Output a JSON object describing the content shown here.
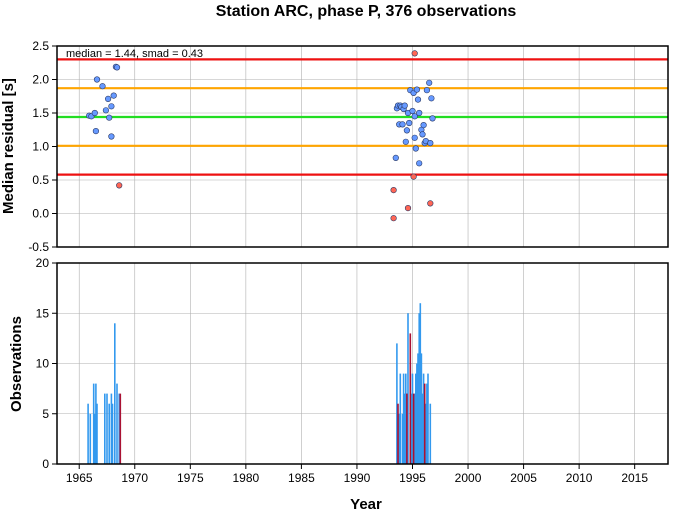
{
  "chart_data": [
    {
      "type": "scatter",
      "title": "Station ARC, phase P, 376 observations",
      "ylabel": "Median residual [s]",
      "xlim": [
        1963,
        2018
      ],
      "ylim": [
        -0.5,
        2.5
      ],
      "yticks": [
        "-0.5",
        "0.0",
        "0.5",
        "1.0",
        "1.5",
        "2.0",
        "2.5"
      ],
      "grid": true,
      "annotation": "median = 1.44, smad = 0.43",
      "reference_lines": [
        {
          "y": 2.3,
          "color": "#ee1111"
        },
        {
          "y": 1.87,
          "color": "#ffa500"
        },
        {
          "y": 1.44,
          "color": "#22dd22"
        },
        {
          "y": 1.01,
          "color": "#ffa500"
        },
        {
          "y": 0.58,
          "color": "#ee1111"
        }
      ],
      "series": [
        {
          "color": "#6699ff",
          "points": [
            [
              1965.9,
              1.46
            ],
            [
              1966.1,
              1.45
            ],
            [
              1966.4,
              1.5
            ],
            [
              1966.5,
              1.23
            ],
            [
              1966.6,
              2.0
            ],
            [
              1967.1,
              1.9
            ],
            [
              1967.4,
              1.54
            ],
            [
              1967.6,
              1.71
            ],
            [
              1967.7,
              1.43
            ],
            [
              1967.9,
              1.15
            ],
            [
              1967.9,
              1.6
            ],
            [
              1968.1,
              1.76
            ],
            [
              1968.3,
              2.19
            ],
            [
              1968.4,
              2.18
            ],
            [
              1993.5,
              0.83
            ],
            [
              1993.6,
              1.57
            ],
            [
              1993.7,
              1.61
            ],
            [
              1993.8,
              1.33
            ],
            [
              1993.9,
              1.61
            ],
            [
              1994.0,
              1.59
            ],
            [
              1994.1,
              1.33
            ],
            [
              1994.2,
              1.56
            ],
            [
              1994.3,
              1.61
            ],
            [
              1994.4,
              1.07
            ],
            [
              1994.5,
              1.24
            ],
            [
              1994.6,
              1.5
            ],
            [
              1994.7,
              1.35
            ],
            [
              1994.8,
              1.84
            ],
            [
              1995.0,
              1.53
            ],
            [
              1995.1,
              1.8
            ],
            [
              1995.2,
              1.45
            ],
            [
              1995.2,
              1.13
            ],
            [
              1995.3,
              0.97
            ],
            [
              1995.4,
              1.85
            ],
            [
              1995.5,
              1.7
            ],
            [
              1995.6,
              0.75
            ],
            [
              1995.6,
              1.5
            ],
            [
              1995.8,
              1.25
            ],
            [
              1995.9,
              1.18
            ],
            [
              1996.0,
              1.32
            ],
            [
              1996.1,
              1.05
            ],
            [
              1996.2,
              1.08
            ],
            [
              1996.3,
              1.84
            ],
            [
              1996.5,
              1.95
            ],
            [
              1996.6,
              1.05
            ],
            [
              1996.7,
              1.72
            ],
            [
              1996.8,
              1.42
            ]
          ]
        },
        {
          "color": "#ff6655",
          "points": [
            [
              1968.6,
              0.42
            ],
            [
              1993.3,
              0.35
            ],
            [
              1993.3,
              -0.07
            ],
            [
              1994.6,
              0.08
            ],
            [
              1995.1,
              0.55
            ],
            [
              1995.2,
              2.39
            ],
            [
              1996.6,
              0.15
            ]
          ]
        }
      ]
    },
    {
      "type": "bar",
      "xlabel": "Year",
      "ylabel": "Observations",
      "xlim": [
        1963,
        2018
      ],
      "ylim": [
        0,
        20
      ],
      "xticks": [
        "1965",
        "1970",
        "1975",
        "1980",
        "1985",
        "1990",
        "1995",
        "2000",
        "2005",
        "2010",
        "2015"
      ],
      "yticks": [
        "0",
        "5",
        "10",
        "15",
        "20"
      ],
      "grid": true,
      "series": [
        {
          "color": "#3399ee",
          "bars": [
            [
              1965.8,
              6
            ],
            [
              1966.0,
              5
            ],
            [
              1966.3,
              8
            ],
            [
              1966.4,
              5
            ],
            [
              1966.5,
              8
            ],
            [
              1966.6,
              6
            ],
            [
              1967.3,
              7
            ],
            [
              1967.5,
              7
            ],
            [
              1967.7,
              6
            ],
            [
              1967.9,
              7
            ],
            [
              1968.0,
              6
            ],
            [
              1968.2,
              14
            ],
            [
              1968.4,
              8
            ],
            [
              1968.6,
              7
            ],
            [
              1993.6,
              12
            ],
            [
              1993.8,
              5
            ],
            [
              1993.9,
              9
            ],
            [
              1994.1,
              5
            ],
            [
              1994.2,
              9
            ],
            [
              1994.3,
              7
            ],
            [
              1994.4,
              9
            ],
            [
              1994.5,
              7
            ],
            [
              1994.6,
              15
            ],
            [
              1994.8,
              10
            ],
            [
              1994.9,
              7
            ],
            [
              1995.0,
              9
            ],
            [
              1995.2,
              7
            ],
            [
              1995.3,
              9
            ],
            [
              1995.4,
              10
            ],
            [
              1995.5,
              11
            ],
            [
              1995.6,
              15
            ],
            [
              1995.7,
              16
            ],
            [
              1995.8,
              11
            ],
            [
              1995.9,
              7
            ],
            [
              1996.0,
              9
            ],
            [
              1996.2,
              6
            ],
            [
              1996.3,
              8
            ],
            [
              1996.4,
              9
            ],
            [
              1996.6,
              6
            ]
          ]
        },
        {
          "color": "#aa1133",
          "bars": [
            [
              1968.7,
              7
            ],
            [
              1993.7,
              6
            ],
            [
              1994.5,
              7
            ],
            [
              1994.8,
              13
            ],
            [
              1995.1,
              7
            ],
            [
              1996.1,
              8
            ]
          ]
        }
      ]
    }
  ]
}
